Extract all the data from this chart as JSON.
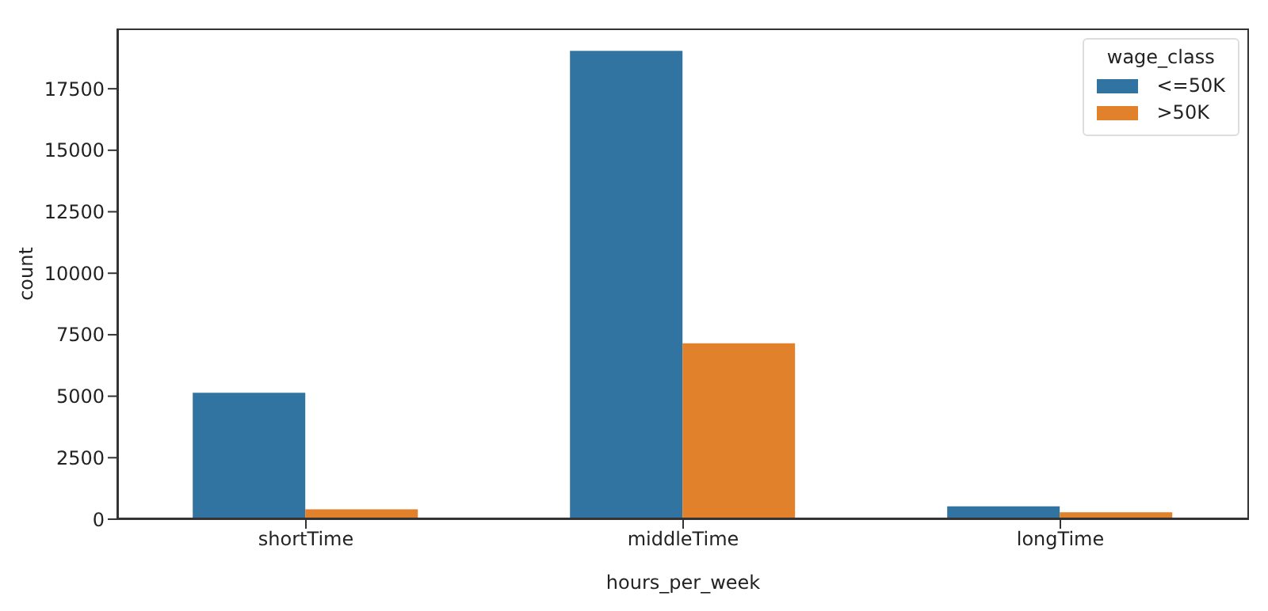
{
  "chart_data": {
    "type": "bar",
    "xlabel": "hours_per_week",
    "ylabel": "count",
    "legend_title": "wage_class",
    "legend": "top right",
    "grid": false,
    "categories": [
      "shortTime",
      "middleTime",
      "longTime"
    ],
    "series": [
      {
        "name": "<=50K",
        "color": "#3274a1",
        "values": [
          5140,
          19040,
          520
        ]
      },
      {
        "name": ">50K",
        "color": "#e1812c",
        "values": [
          400,
          7150,
          280
        ]
      }
    ],
    "ylim": [
      0,
      19950
    ],
    "yticks": [
      0,
      2500,
      5000,
      7500,
      10000,
      12500,
      15000,
      17500
    ]
  }
}
